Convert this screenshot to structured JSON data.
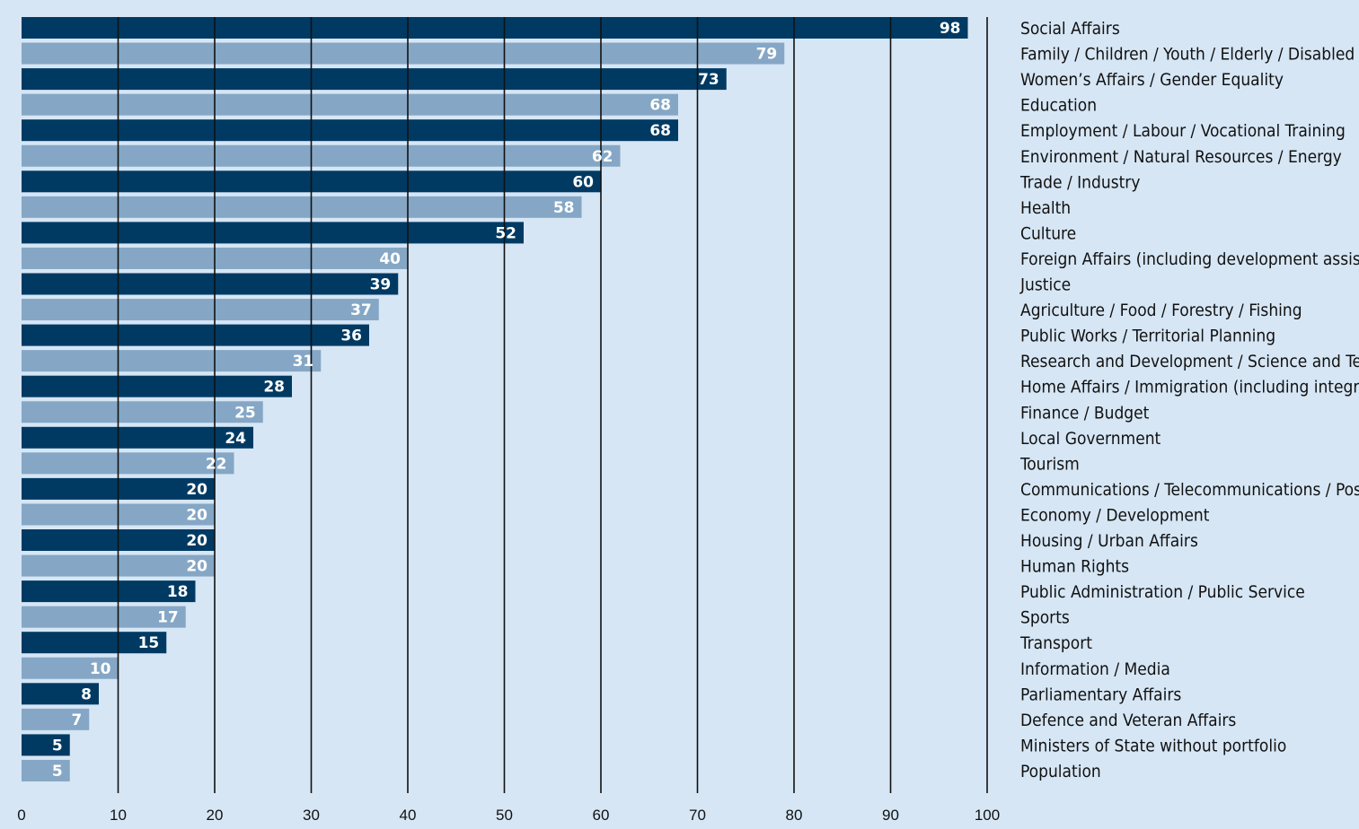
{
  "chart_data": {
    "type": "bar",
    "orientation": "horizontal",
    "categories": [
      "Social Affairs",
      "Family / Children / Youth / Elderly / Disabled",
      "Women’s Affairs / Gender Equality",
      "Education",
      "Employment / Labour / Vocational Training",
      "Environment / Natural Resources / Energy",
      "Trade / Industry",
      "Health",
      "Culture",
      "Foreign Affairs (including development assistance)",
      "Justice",
      "Agriculture / Food / Forestry / Fishing",
      "Public Works / Territorial Planning",
      "Research and Development / Science and Technology",
      "Home Affairs / Immigration (including integration)",
      "Finance / Budget",
      "Local Government",
      "Tourism",
      "Communications / Telecommunications / Post",
      "Economy / Development",
      "Housing / Urban Affairs",
      "Human Rights",
      "Public Administration / Public Service",
      "Sports",
      "Transport",
      "Information / Media",
      "Parliamentary Affairs",
      "Defence and Veteran Affairs",
      "Ministers of State without portfolio",
      "Population"
    ],
    "values": [
      98,
      79,
      73,
      68,
      68,
      62,
      60,
      58,
      52,
      40,
      39,
      37,
      36,
      31,
      28,
      25,
      24,
      22,
      20,
      20,
      20,
      20,
      18,
      17,
      15,
      10,
      8,
      7,
      5,
      5
    ],
    "xlim": [
      0,
      100
    ],
    "xticks": [
      0,
      10,
      20,
      30,
      40,
      50,
      60,
      70,
      80,
      90,
      100
    ],
    "grid": true,
    "title": "",
    "xlabel": "",
    "ylabel": "",
    "colors": {
      "background": "#d6e6f5",
      "bar_dark": "#003a63",
      "bar_light": "#85a7c5",
      "gridline": "#111111",
      "value_text": "#ffffff",
      "label_text": "#111111"
    }
  }
}
